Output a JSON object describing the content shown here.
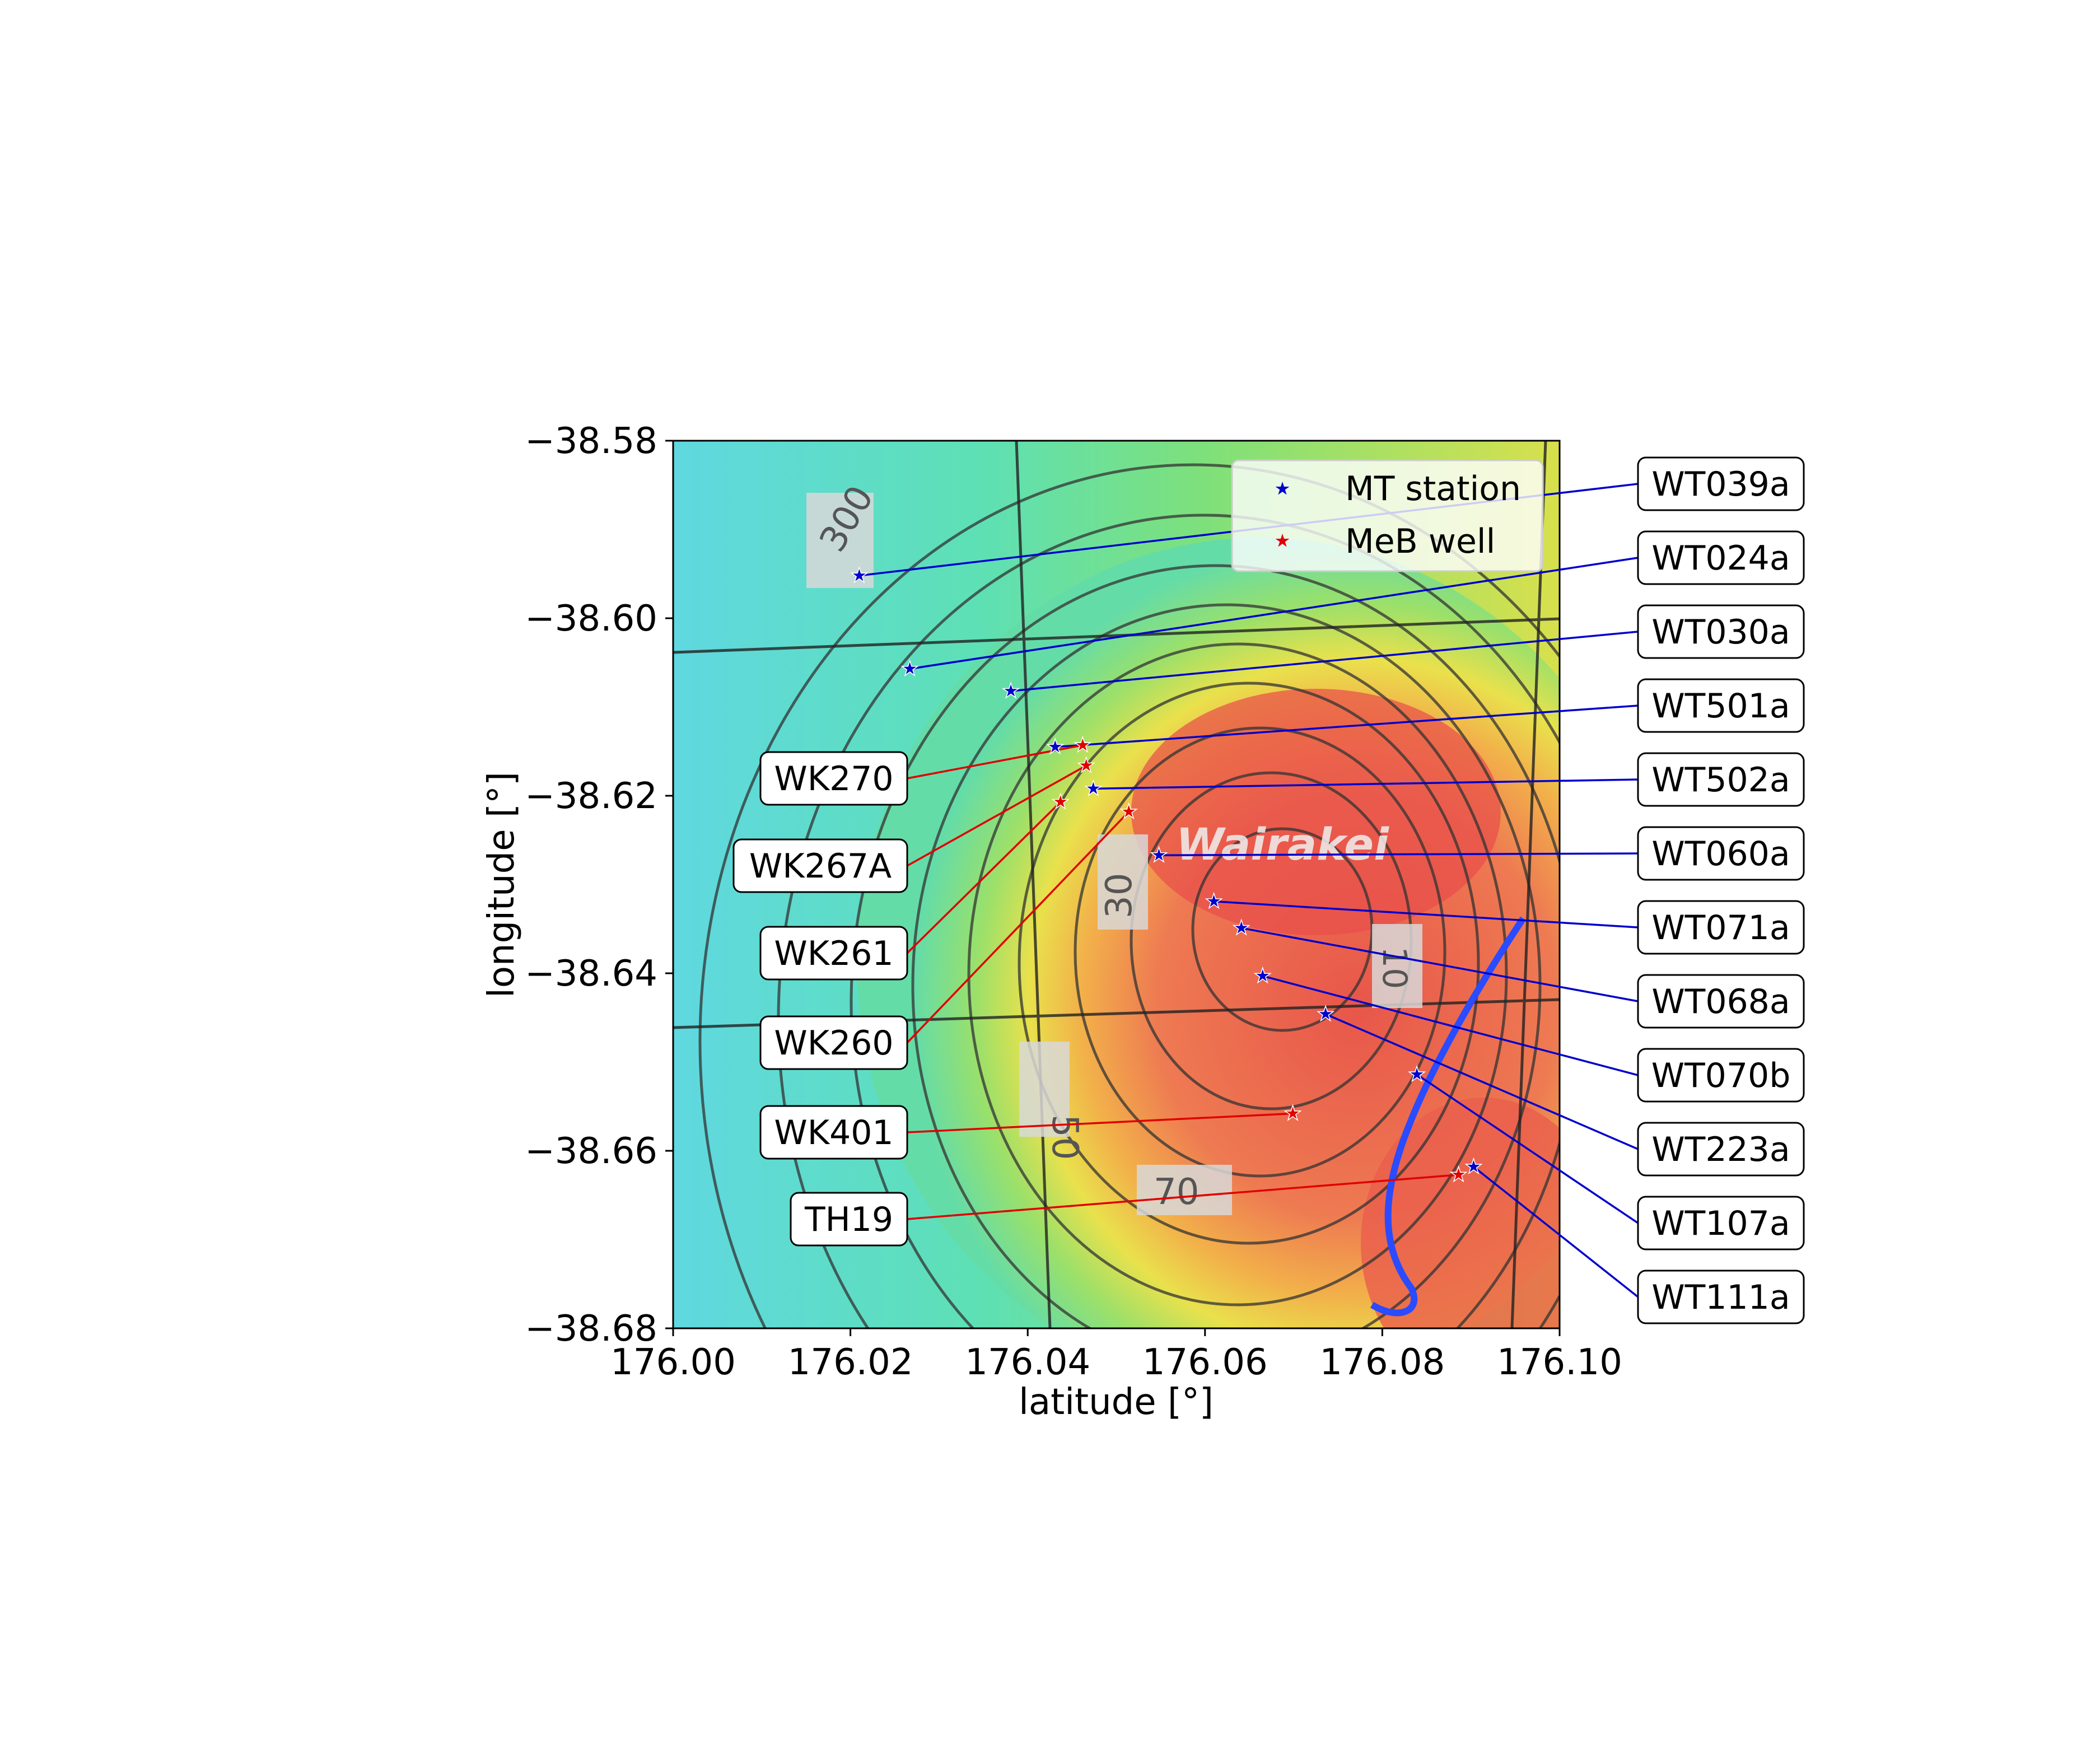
{
  "chart_data": {
    "type": "scatter",
    "xlabel": "latitude [°]",
    "ylabel": "longitude [°]",
    "xlim": [
      176.0,
      176.1
    ],
    "ylim": [
      -38.68,
      -38.58
    ],
    "xticks": [
      "176.00",
      "176.02",
      "176.04",
      "176.06",
      "176.08",
      "176.10"
    ],
    "yticks": [
      "−38.58",
      "−38.60",
      "−38.62",
      "−38.64",
      "−38.66",
      "−38.68"
    ],
    "background": "resistivity contour map of the Wairakei geothermal field (map labels: Wairakei, 300, 30, 50, 70, 10)",
    "map_labels": [
      "Wairakei",
      "300",
      "30",
      "50",
      "70",
      "10"
    ],
    "legend": {
      "position": "top-right",
      "entries": [
        "MT station",
        "MeB well"
      ]
    },
    "colors": {
      "mt_station": "#0000cc",
      "meb_well": "#e00000"
    },
    "series": [
      {
        "name": "MT station",
        "marker": "star",
        "color": "#0000cc",
        "points": [
          {
            "label": "WT039a",
            "x": 176.021,
            "y": -38.5952
          },
          {
            "label": "WT024a",
            "x": 176.0267,
            "y": -38.6057
          },
          {
            "label": "WT030a",
            "x": 176.0381,
            "y": -38.6082
          },
          {
            "label": "WT501a",
            "x": 176.0431,
            "y": -38.6145
          },
          {
            "label": "WT502a",
            "x": 176.0474,
            "y": -38.6192
          },
          {
            "label": "WT060a",
            "x": 176.0548,
            "y": -38.6267
          },
          {
            "label": "WT071a",
            "x": 176.061,
            "y": -38.6319
          },
          {
            "label": "WT068a",
            "x": 176.0641,
            "y": -38.6349
          },
          {
            "label": "WT070b",
            "x": 176.0665,
            "y": -38.6403
          },
          {
            "label": "WT223a",
            "x": 176.0736,
            "y": -38.6446
          },
          {
            "label": "WT107a",
            "x": 176.0839,
            "y": -38.6514
          },
          {
            "label": "WT111a",
            "x": 176.0903,
            "y": -38.6618
          }
        ]
      },
      {
        "name": "MeB well",
        "marker": "star",
        "color": "#e00000",
        "points": [
          {
            "label": "WK270",
            "x": 176.0462,
            "y": -38.6143
          },
          {
            "label": "WK267A",
            "x": 176.0466,
            "y": -38.6166
          },
          {
            "label": "WK261",
            "x": 176.0437,
            "y": -38.6207
          },
          {
            "label": "WK260",
            "x": 176.0514,
            "y": -38.6218
          },
          {
            "label": "WK401",
            "x": 176.0699,
            "y": -38.6558
          },
          {
            "label": "TH19",
            "x": 176.0886,
            "y": -38.6627
          }
        ]
      }
    ]
  }
}
